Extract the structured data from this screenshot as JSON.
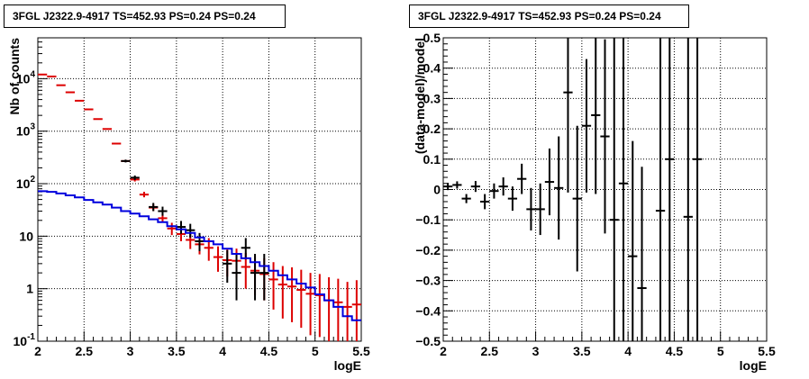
{
  "chart_data": [
    {
      "type": "scatter",
      "title": "3FGL J2322.9-4917 TS=452.93 PS=0.24 PS=0.24",
      "xlabel": "logE",
      "ylabel": "Nb of counts",
      "xlim": [
        2,
        5.5
      ],
      "ylim": [
        0.1,
        60000
      ],
      "yscale": "log",
      "grid": true,
      "xticks": [
        "2",
        "2.5",
        "3",
        "3.5",
        "4",
        "4.5",
        "5",
        "5.5"
      ],
      "yticks": [
        {
          "value": 0.1,
          "label": "10",
          "sup": "-1"
        },
        {
          "value": 1,
          "label": "1",
          "sup": ""
        },
        {
          "value": 10,
          "label": "10",
          "sup": ""
        },
        {
          "value": 100,
          "label": "10",
          "sup": "2"
        },
        {
          "value": 1000,
          "label": "10",
          "sup": "3"
        },
        {
          "value": 10000,
          "label": "10",
          "sup": "4"
        }
      ],
      "bin_width": 0.1,
      "series": [
        {
          "color": "#dd0000",
          "style": "error-bars",
          "x": [
            2.05,
            2.15,
            2.25,
            2.35,
            2.45,
            2.55,
            2.65,
            2.75,
            2.85,
            2.95,
            3.05,
            3.15,
            3.25,
            3.35,
            3.45,
            3.55,
            3.65,
            3.75,
            3.85,
            3.95,
            4.05,
            4.15,
            4.25,
            4.35,
            4.45,
            4.55,
            4.65,
            4.75,
            4.85,
            4.95,
            5.05,
            5.15,
            5.25,
            5.35,
            5.45
          ],
          "y": [
            12000,
            11000,
            7500,
            5500,
            3800,
            2600,
            1700,
            1100,
            580,
            270,
            120,
            62,
            35,
            22,
            14,
            11,
            8.5,
            7,
            6,
            4,
            3.5,
            3.4,
            2.6,
            2.2,
            1.9,
            1.5,
            1.2,
            1.1,
            0.95,
            0.8,
            0.75,
            0.6,
            0.55,
            0.45,
            0.5
          ],
          "yerr_low": [
            0,
            0,
            0,
            0,
            0,
            0,
            0,
            0,
            0,
            0,
            10,
            7,
            5,
            4,
            3.5,
            3,
            2.8,
            2.5,
            2.6,
            1.9,
            1.8,
            1.8,
            1.6,
            1.45,
            1.3,
            1.1,
            0.93,
            0.87,
            0.77,
            0.67,
            0.63,
            0.52,
            0.48,
            0.4,
            0.44
          ],
          "yerr_high": [
            0,
            0,
            0,
            0,
            0,
            0,
            0,
            0,
            0,
            0,
            11,
            8,
            6,
            5,
            4,
            4,
            3.3,
            3,
            3.2,
            2.4,
            2.4,
            2.4,
            2.2,
            2,
            1.9,
            1.7,
            1.5,
            1.45,
            1.35,
            1.2,
            1.15,
            1.05,
            1,
            0.9,
            0.95
          ]
        },
        {
          "color": "#000000",
          "style": "error-bars",
          "x": [
            2.95,
            3.05,
            3.25,
            3.35,
            3.55,
            3.65,
            3.75,
            4.05,
            4.15,
            4.25,
            4.35,
            4.45
          ],
          "y": [
            270,
            130,
            36,
            30,
            15,
            13,
            8,
            3,
            2,
            6,
            2,
            2
          ],
          "yerr_low": [
            16,
            12,
            6,
            5.5,
            3.9,
            3.6,
            2.8,
            1.7,
            1.4,
            2.4,
            1.4,
            1.4
          ],
          "yerr_high": [
            17,
            13,
            7,
            6.5,
            4.5,
            4.2,
            3.5,
            2.4,
            2.7,
            3.2,
            2.6,
            2.6
          ]
        },
        {
          "color": "#0000dd",
          "style": "step",
          "x": [
            2.05,
            2.15,
            2.25,
            2.35,
            2.45,
            2.55,
            2.65,
            2.75,
            2.85,
            2.95,
            3.05,
            3.15,
            3.25,
            3.35,
            3.45,
            3.55,
            3.65,
            3.75,
            3.85,
            3.95,
            4.05,
            4.15,
            4.25,
            4.35,
            4.45,
            4.55,
            4.65,
            4.75,
            4.85,
            4.95,
            5.05,
            5.15,
            5.25,
            5.35,
            5.45
          ],
          "y": [
            72,
            70,
            65,
            60,
            55,
            49,
            44,
            40,
            35,
            30,
            27,
            24,
            21,
            18.5,
            15.5,
            13.5,
            11.5,
            9.5,
            8,
            7,
            5.8,
            4.6,
            3.8,
            3.2,
            2.7,
            2.2,
            1.8,
            1.5,
            1.25,
            1.05,
            0.78,
            0.6,
            0.45,
            0.3,
            0.25
          ]
        }
      ]
    },
    {
      "type": "scatter",
      "title": "3FGL J2322.9-4917 TS=452.93 PS=0.24 PS=0.24",
      "xlabel": "logE",
      "ylabel": "(data-model)/model",
      "xlim": [
        2,
        5.5
      ],
      "ylim": [
        -0.5,
        0.5
      ],
      "grid": true,
      "xticks": [
        "2",
        "2.5",
        "3",
        "3.5",
        "4",
        "4.5",
        "5",
        "5.5"
      ],
      "yticks": [
        "-0.5",
        "-0.4",
        "-0.3",
        "-0.2",
        "-0.1",
        "0",
        "0.1",
        "0.2",
        "0.3",
        "0.4",
        "0.5"
      ],
      "bin_width": 0.1,
      "series": [
        {
          "color": "#000000",
          "style": "error-bars",
          "x": [
            2.05,
            2.15,
            2.25,
            2.35,
            2.45,
            2.55,
            2.65,
            2.75,
            2.85,
            2.95,
            3.05,
            3.15,
            3.25,
            3.35,
            3.45,
            3.55,
            3.65,
            3.75,
            3.85,
            3.95,
            4.05,
            4.15,
            4.35,
            4.45,
            4.65,
            4.75
          ],
          "y": [
            0.01,
            0.015,
            -0.03,
            0.01,
            -0.04,
            -0.005,
            0.01,
            -0.03,
            0.035,
            -0.065,
            -0.065,
            0.025,
            0.005,
            0.32,
            -0.03,
            0.21,
            0.245,
            0.175,
            -0.1,
            0.02,
            -0.22,
            -0.325,
            -0.07,
            0.1,
            -0.09,
            0.1
          ],
          "yerr": [
            0.012,
            0.012,
            0.015,
            0.018,
            0.025,
            0.025,
            0.03,
            0.04,
            0.05,
            0.07,
            0.085,
            0.11,
            0.17,
            0.33,
            0.24,
            0.22,
            0.26,
            0.32,
            0.6,
            0.55,
            0.38,
            0.4,
            0.7,
            0.8,
            0.8,
            0.8
          ]
        }
      ]
    }
  ]
}
